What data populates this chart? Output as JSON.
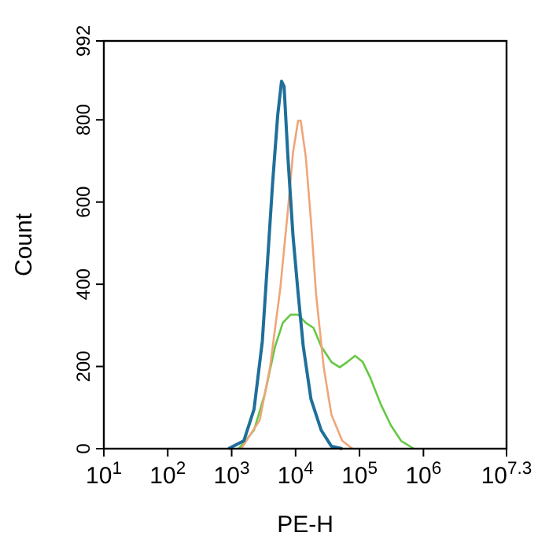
{
  "chart_data": {
    "type": "line",
    "xlabel": "PE-H",
    "ylabel": "Count",
    "log": "x",
    "xlim": [
      10,
      19952623
    ],
    "ylim": [
      0,
      992
    ],
    "xticks": [
      {
        "value": 10,
        "label": "10$^{1}$"
      },
      {
        "value": 100,
        "label": "10$^{2}$"
      },
      {
        "value": 1000,
        "label": "10$^{3}$"
      },
      {
        "value": 10000,
        "label": "10$^{4}$"
      },
      {
        "value": 100000,
        "label": "10$^{5}$"
      },
      {
        "value": 1000000,
        "label": "10$^{6}$"
      },
      {
        "value": 19952623,
        "label": "10$^{7.3}$"
      }
    ],
    "yticks": [
      0,
      200,
      400,
      600,
      800,
      992
    ],
    "grid": false,
    "marker": "none",
    "line_style": "solid",
    "series": [
      {
        "color": "#66c844",
        "x": [
          1288,
          2239,
          3311,
          4786,
          6310,
          8318,
          10965,
          14454,
          19055,
          25119,
          36308,
          48978,
          64565,
          85114,
          112202,
          147911,
          213796,
          309030,
          446684,
          707946
        ],
        "values": [
          0,
          45,
          134,
          249,
          306,
          326,
          326,
          306,
          294,
          249,
          211,
          198,
          211,
          226,
          211,
          172,
          109,
          57,
          19,
          0
        ]
      },
      {
        "color": "#f0a578",
        "x": [
          1413,
          2754,
          3981,
          5754,
          7586,
          9120,
          10965,
          12023,
          14454,
          17378,
          20893,
          27542,
          36308,
          53703,
          77625
        ],
        "values": [
          0,
          70,
          198,
          389,
          581,
          721,
          798,
          798,
          709,
          555,
          377,
          198,
          83,
          19,
          0
        ]
      },
      {
        "color": "#1f6f9a",
        "x": [
          891,
          1549,
          2239,
          3020,
          3631,
          4365,
          5248,
          6026,
          6607,
          7586,
          9120,
          10965,
          13183,
          17378,
          25119,
          36308,
          53703
        ],
        "values": [
          0,
          19,
          96,
          262,
          453,
          645,
          811,
          894,
          881,
          709,
          517,
          377,
          249,
          121,
          45,
          6,
          0
        ]
      }
    ]
  }
}
